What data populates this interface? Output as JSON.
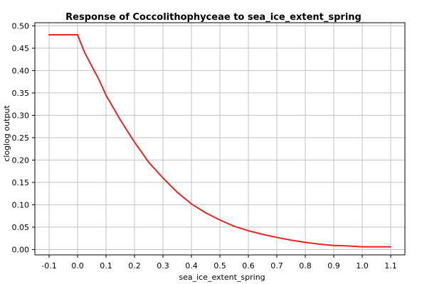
{
  "chart_data": {
    "type": "line",
    "title": "Response of Coccolithophyceae to sea_ice_extent_spring",
    "xlabel": "sea_ice_extent_spring",
    "ylabel": "cloglog output",
    "xlim": [
      -0.15,
      1.15
    ],
    "ylim": [
      -0.012,
      0.507
    ],
    "xticks": [
      "-0.1",
      "0.0",
      "0.1",
      "0.2",
      "0.3",
      "0.4",
      "0.5",
      "0.6",
      "0.7",
      "0.8",
      "0.9",
      "1.0",
      "1.1"
    ],
    "yticks": [
      "0.00",
      "0.05",
      "0.10",
      "0.15",
      "0.20",
      "0.25",
      "0.30",
      "0.35",
      "0.40",
      "0.45",
      "0.50"
    ],
    "grid": true,
    "line_color": "#ee2222",
    "series": [
      {
        "x": [
          -0.1,
          -0.05,
          0.0,
          0.025,
          0.05,
          0.075,
          0.1,
          0.15,
          0.2,
          0.25,
          0.3,
          0.35,
          0.4,
          0.45,
          0.5,
          0.55,
          0.6,
          0.65,
          0.7,
          0.75,
          0.8,
          0.85,
          0.9,
          0.95,
          1.0,
          1.05,
          1.1
        ],
        "y": [
          0.48,
          0.48,
          0.48,
          0.44,
          0.41,
          0.38,
          0.345,
          0.29,
          0.24,
          0.195,
          0.16,
          0.128,
          0.102,
          0.082,
          0.066,
          0.052,
          0.042,
          0.034,
          0.027,
          0.021,
          0.016,
          0.012,
          0.009,
          0.008,
          0.006,
          0.006,
          0.006
        ]
      }
    ]
  }
}
